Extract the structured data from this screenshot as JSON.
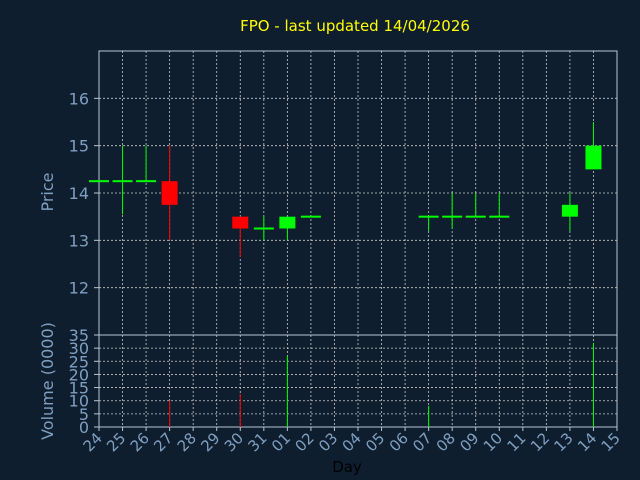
{
  "title": "FPO - last updated 14/04/2026",
  "colors": {
    "background": "#0f1e2f",
    "plot_background": "#0f1e2f",
    "frame": "#b9c4d2",
    "grid": "#c8c8c8",
    "title": "#ffff00",
    "label": "#7fa0c0",
    "xlabel": "#000000",
    "up": "#00ff00",
    "down": "#ff0000",
    "neutral": "#00ff00"
  },
  "chart_data": [
    {
      "type": "candlestick",
      "title": "FPO - last updated 14/04/2026",
      "ylabel": "Price",
      "ylim": [
        11,
        17
      ],
      "yticks": [
        12,
        13,
        14,
        15,
        16
      ],
      "grid": true,
      "categories": [
        "24",
        "25",
        "26",
        "27",
        "28",
        "29",
        "30",
        "31",
        "01",
        "02",
        "03",
        "04",
        "05",
        "06",
        "07",
        "08",
        "09",
        "10",
        "11",
        "12",
        "13",
        "14",
        "15"
      ],
      "candles": [
        {
          "day": "24",
          "open": 14.25,
          "high": 14.25,
          "low": 14.25,
          "close": 14.25
        },
        {
          "day": "25",
          "open": 14.25,
          "high": 15.0,
          "low": 13.55,
          "close": 14.25
        },
        {
          "day": "26",
          "open": 14.25,
          "high": 15.0,
          "low": 14.25,
          "close": 14.25
        },
        {
          "day": "27",
          "open": 14.25,
          "high": 15.0,
          "low": 13.0,
          "close": 13.75
        },
        {
          "day": "30",
          "open": 13.5,
          "high": 13.5,
          "low": 12.65,
          "close": 13.25
        },
        {
          "day": "31",
          "open": 13.25,
          "high": 13.5,
          "low": 13.0,
          "close": 13.25
        },
        {
          "day": "01",
          "open": 13.25,
          "high": 13.5,
          "low": 13.0,
          "close": 13.5
        },
        {
          "day": "02",
          "open": 13.5,
          "high": 13.5,
          "low": 13.5,
          "close": 13.5
        },
        {
          "day": "07",
          "open": 13.5,
          "high": 13.5,
          "low": 13.2,
          "close": 13.5
        },
        {
          "day": "08",
          "open": 13.5,
          "high": 14.0,
          "low": 13.25,
          "close": 13.5
        },
        {
          "day": "09",
          "open": 13.5,
          "high": 14.0,
          "low": 13.5,
          "close": 13.5
        },
        {
          "day": "10",
          "open": 13.5,
          "high": 14.0,
          "low": 13.5,
          "close": 13.5
        },
        {
          "day": "13",
          "open": 13.5,
          "high": 14.0,
          "low": 13.2,
          "close": 13.75
        },
        {
          "day": "14",
          "open": 14.5,
          "high": 15.5,
          "low": 14.5,
          "close": 15.0
        }
      ]
    },
    {
      "type": "bar",
      "ylabel": "Volume (0000)",
      "xlabel": "Day",
      "ylim": [
        0,
        35
      ],
      "yticks": [
        0,
        5,
        10,
        15,
        20,
        25,
        30,
        35
      ],
      "grid": true,
      "categories": [
        "24",
        "25",
        "26",
        "27",
        "28",
        "29",
        "30",
        "31",
        "01",
        "02",
        "03",
        "04",
        "05",
        "06",
        "07",
        "08",
        "09",
        "10",
        "11",
        "12",
        "13",
        "14",
        "15"
      ],
      "bars": [
        {
          "day": "27",
          "value": 10,
          "direction": "down"
        },
        {
          "day": "30",
          "value": 12.5,
          "direction": "down"
        },
        {
          "day": "01",
          "value": 27,
          "direction": "up"
        },
        {
          "day": "07",
          "value": 8,
          "direction": "up"
        },
        {
          "day": "14",
          "value": 32,
          "direction": "up"
        }
      ]
    }
  ]
}
